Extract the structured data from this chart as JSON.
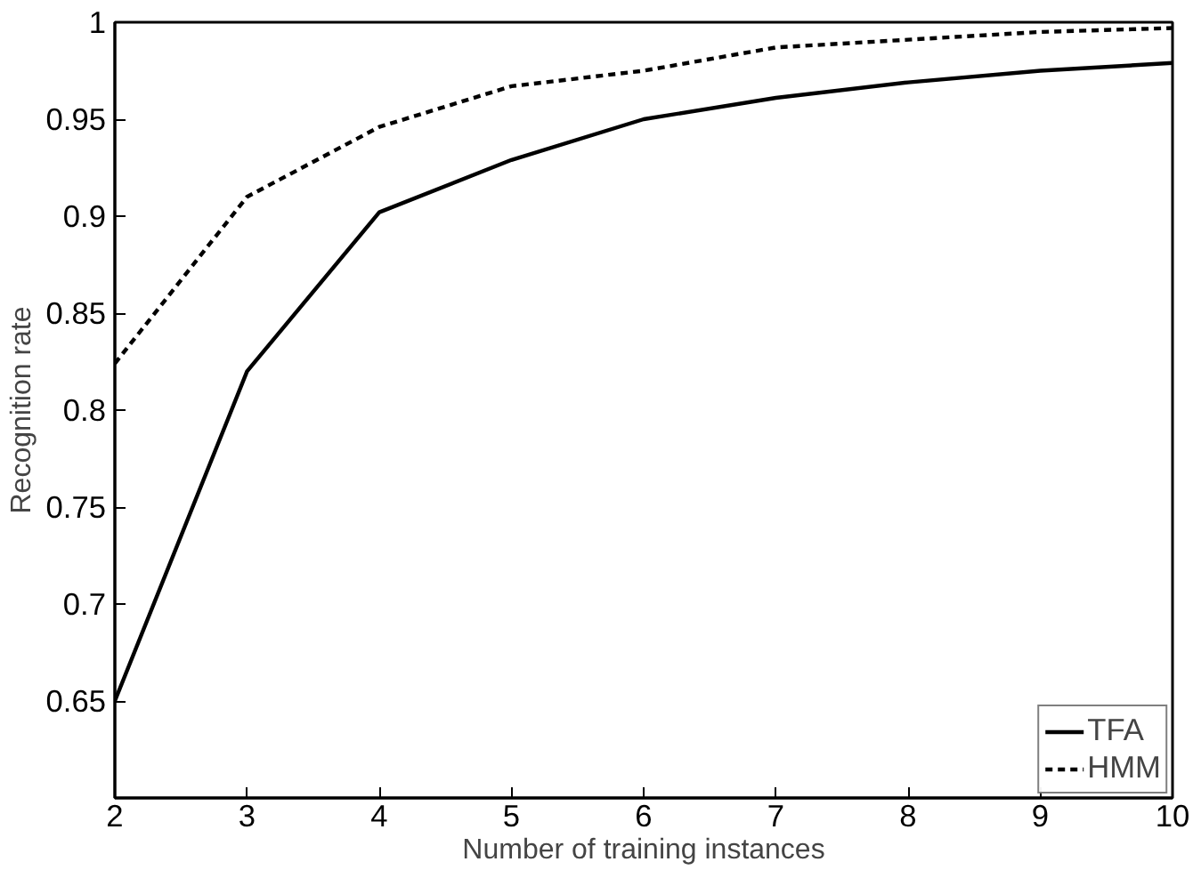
{
  "chart_data": {
    "type": "line",
    "xlabel": "Number of training instances",
    "ylabel": "Recognition rate",
    "x": [
      2,
      3,
      4,
      5,
      6,
      7,
      8,
      9,
      10
    ],
    "series": [
      {
        "name": "TFA",
        "color": "#000000",
        "line_style": "solid",
        "values": [
          0.65,
          0.82,
          0.902,
          0.929,
          0.95,
          0.961,
          0.969,
          0.975,
          0.979
        ]
      },
      {
        "name": "HMM",
        "color": "#000000",
        "line_style": "dashed",
        "values": [
          0.824,
          0.91,
          0.946,
          0.967,
          0.975,
          0.987,
          0.991,
          0.995,
          0.997
        ]
      }
    ],
    "xlim": [
      2,
      10
    ],
    "xticks": [
      2,
      3,
      4,
      5,
      6,
      7,
      8,
      9,
      10
    ],
    "ylim": [
      0.6,
      1
    ],
    "yticks": [
      0.65,
      0.7,
      0.75,
      0.8,
      0.85,
      0.9,
      0.95,
      1
    ],
    "grid": false,
    "legend": "bottom right",
    "marker": "none"
  }
}
